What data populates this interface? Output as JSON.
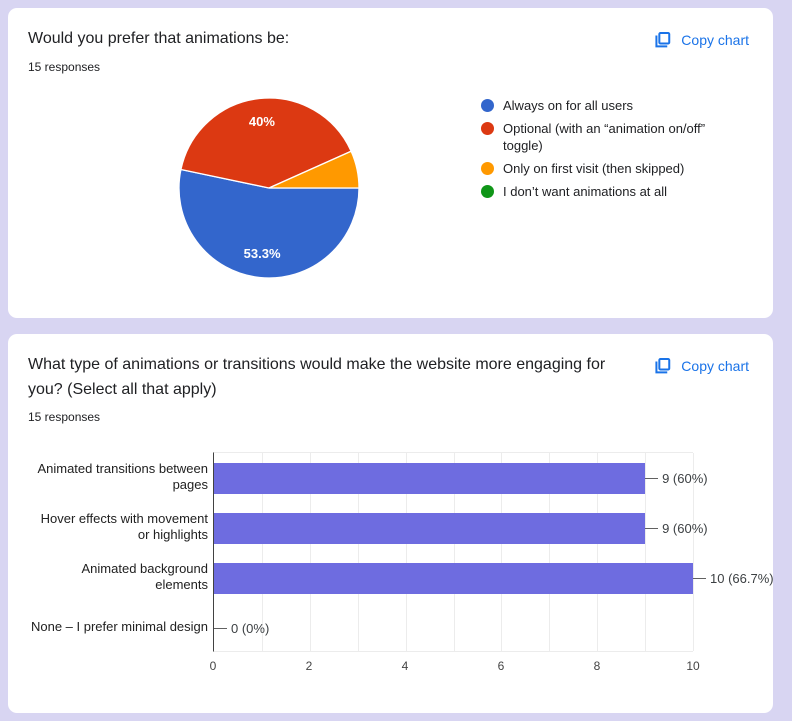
{
  "page": {
    "background_color": "#d8d5f2",
    "card_color": "#ffffff"
  },
  "colors": {
    "accent_blue": "#1a73e8",
    "axis_line": "#424242",
    "gridline": "#ececec",
    "text_dark": "#202124"
  },
  "cards": [
    {
      "title": "Would you prefer that animations be:",
      "responses_label": "15 responses",
      "copy_label": "Copy chart"
    },
    {
      "title": "What type of animations or transitions would make the website more engaging for you? (Select all that apply)",
      "responses_label": "15 responses",
      "copy_label": "Copy chart"
    }
  ],
  "chart_data": [
    {
      "type": "pie",
      "title": "Would you prefer that animations be:",
      "subtitle": "15 responses",
      "categories": [
        "Always on for all users",
        "Optional (with an “animation on/off” toggle)",
        "Only on first visit (then skipped)",
        "I don’t want animations at all"
      ],
      "values_pct": [
        53.3,
        40,
        6.7,
        0
      ],
      "counts": [
        8,
        6,
        1,
        0
      ],
      "slice_labels": [
        "53.3%",
        "40%",
        "",
        ""
      ],
      "colors": [
        "#3366cc",
        "#dc3912",
        "#ff9900",
        "#109618"
      ],
      "start_angle_deg": 0,
      "direction": "clockwise",
      "legend_position": "right",
      "label_color": "#ffffff"
    },
    {
      "type": "bar",
      "orientation": "horizontal",
      "title": "What type of animations or transitions would make the website more engaging for you? (Select all that apply)",
      "subtitle": "15 responses",
      "categories": [
        "Animated transitions between pages",
        "Hover effects with movement or highlights",
        "Animated background elements",
        "None – I prefer minimal design"
      ],
      "values": [
        9,
        9,
        10,
        0
      ],
      "value_labels": [
        "9 (60%)",
        "9 (60%)",
        "10 (66.7%)",
        "0 (0%)"
      ],
      "bar_color": "#6e6ce0",
      "xlim": [
        0,
        10
      ],
      "xticks": [
        0,
        2,
        4,
        6,
        8,
        10
      ],
      "minor_grid_step": 1,
      "grid": true,
      "legend_position": "none"
    }
  ]
}
